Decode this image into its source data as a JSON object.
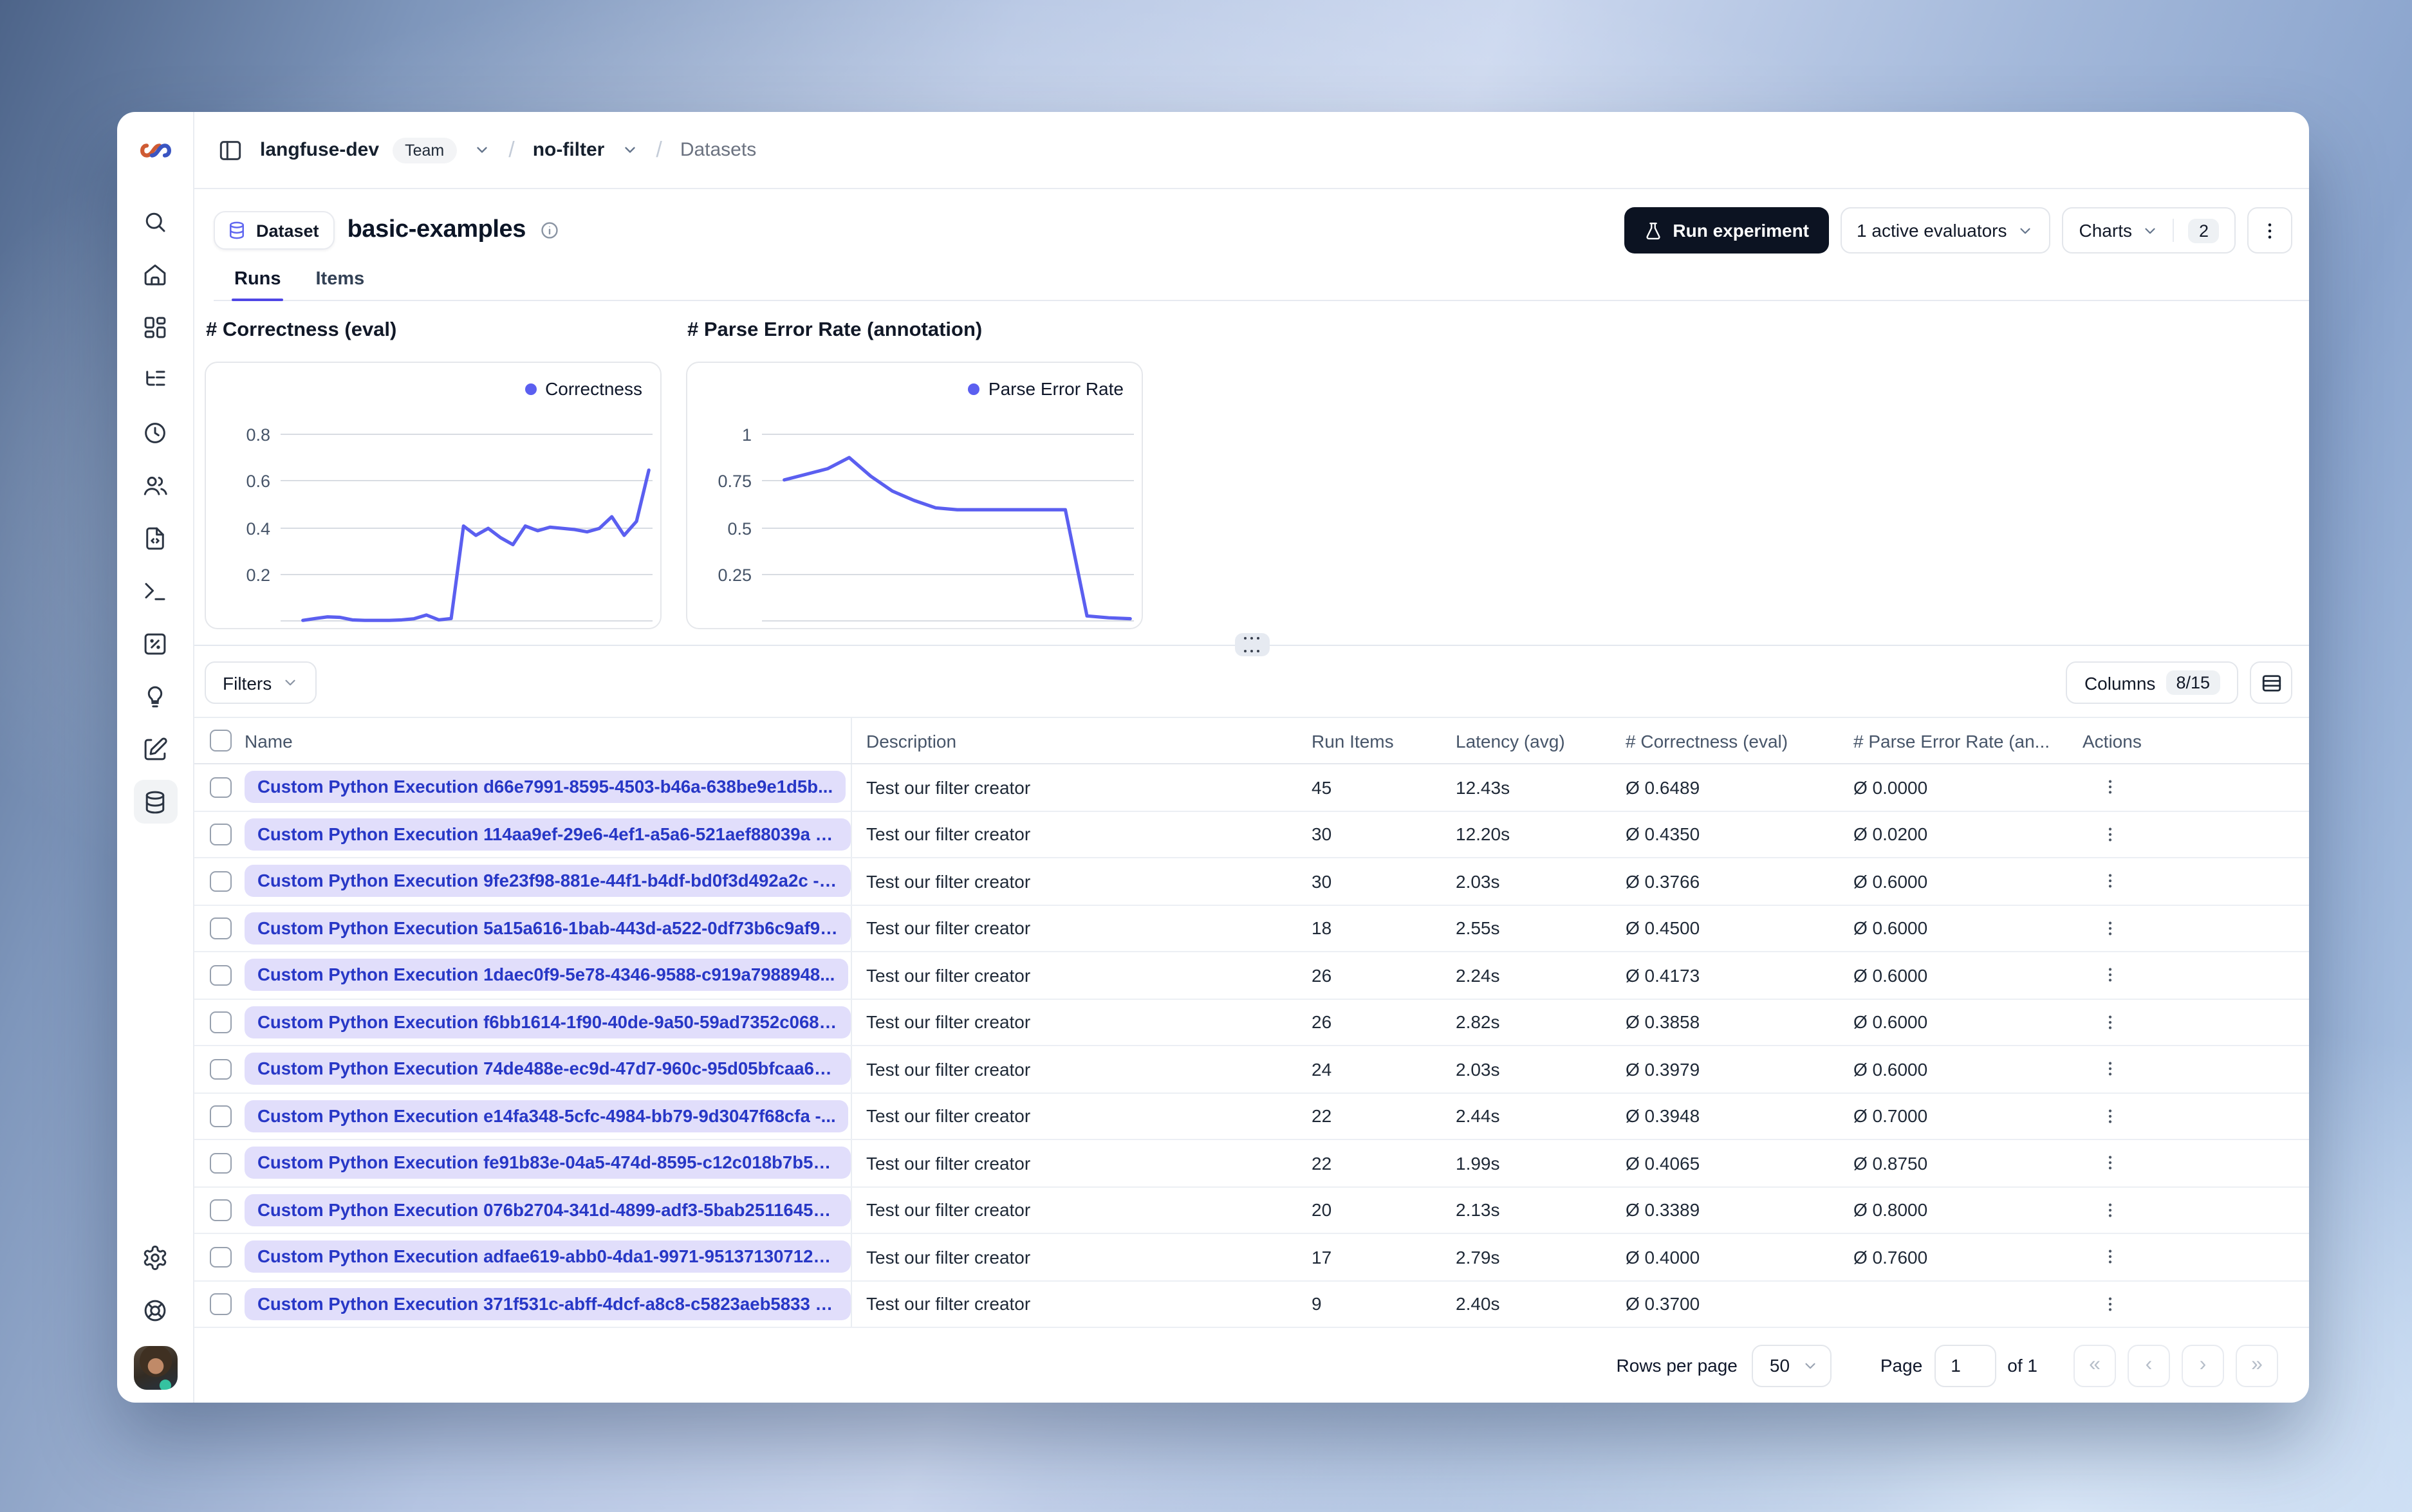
{
  "colors": {
    "accent_indigo": "#5b5ff0",
    "brand_dark": "#0c1322",
    "name_pill_bg": "#e1defb",
    "name_pill_text": "#2737c6",
    "tab_underline": "#4f46e5"
  },
  "sidebar": {
    "items": [
      {
        "icon": "search-icon"
      },
      {
        "icon": "home-icon"
      },
      {
        "icon": "dashboard-icon"
      },
      {
        "icon": "tracing-tree-icon"
      },
      {
        "icon": "sessions-clock-icon"
      },
      {
        "icon": "users-icon"
      },
      {
        "icon": "prompts-file-code-icon"
      },
      {
        "icon": "playground-terminal-icon"
      },
      {
        "icon": "evaluation-square-percent-icon"
      },
      {
        "icon": "insights-lightbulb-icon"
      },
      {
        "icon": "annotation-pen-icon"
      },
      {
        "icon": "datasets-database-icon",
        "active": true
      }
    ],
    "bottom_items": [
      {
        "icon": "settings-gear-icon"
      },
      {
        "icon": "support-lifebuoy-icon"
      }
    ]
  },
  "topbar": {
    "org": "langfuse-dev",
    "org_badge": "Team",
    "separator": "/",
    "env": "no-filter",
    "section": "Datasets"
  },
  "header": {
    "entity_badge": "Dataset",
    "title": "basic-examples",
    "tabs": [
      {
        "label": "Runs",
        "active": true
      },
      {
        "label": "Items",
        "active": false
      }
    ],
    "actions": {
      "run_experiment": "Run experiment",
      "evaluators": "1 active evaluators",
      "charts_label": "Charts",
      "charts_count": "2"
    }
  },
  "chart_data": [
    {
      "type": "line",
      "title": "# Correctness (eval)",
      "series": [
        {
          "name": "Correctness",
          "values": [
            0.005,
            0.013,
            0.02,
            0.018,
            0.007,
            0.005,
            0.005,
            0.005,
            0.007,
            0.012,
            0.028,
            0.007,
            0.013,
            0.41,
            0.37,
            0.4,
            0.36,
            0.33,
            0.41,
            0.39,
            0.405,
            0.4,
            0.395,
            0.385,
            0.4,
            0.45,
            0.37,
            0.43,
            0.65
          ]
        }
      ],
      "ylim": [
        0,
        1.0
      ],
      "yticks": [
        {
          "v": 0.2,
          "label": "0.2"
        },
        {
          "v": 0.4,
          "label": "0.4"
        },
        {
          "v": 0.6,
          "label": "0.6"
        },
        {
          "v": 0.8,
          "label": "0.8"
        }
      ],
      "x_tick_labels": [],
      "grid": true,
      "legend_position": "top-right",
      "color": "#5b5ff0"
    },
    {
      "type": "line",
      "title": "# Parse Error Rate (annotation)",
      "series": [
        {
          "name": "Parse Error Rate",
          "values": [
            0.76,
            0.79,
            0.82,
            0.88,
            0.78,
            0.7,
            0.65,
            0.61,
            0.6,
            0.6,
            0.6,
            0.6,
            0.6,
            0.6,
            0.03,
            0.02,
            0.015
          ]
        }
      ],
      "ylim": [
        0,
        1.25
      ],
      "yticks": [
        {
          "v": 0.25,
          "label": "0.25"
        },
        {
          "v": 0.5,
          "label": "0.5"
        },
        {
          "v": 0.75,
          "label": "0.75"
        },
        {
          "v": 1,
          "label": "1"
        }
      ],
      "x_tick_labels": [],
      "grid": true,
      "legend_position": "top-right",
      "color": "#5b5ff0"
    }
  ],
  "toolbar": {
    "filters_label": "Filters",
    "columns_label": "Columns",
    "columns_count": "8/15",
    "row_height_icon": "table-rows-icon"
  },
  "table": {
    "columns": [
      "Name",
      "Description",
      "Run Items",
      "Latency (avg)",
      "# Correctness (eval)",
      "# Parse Error Rate (an...",
      "Actions"
    ],
    "rows": [
      {
        "name": "Custom Python Execution d66e7991-8595-4503-b46a-638be9e1d5b...",
        "description": "Test our filter creator",
        "run_items": "45",
        "latency": "12.43s",
        "correctness": "Ø 0.6489",
        "parse_error": "Ø 0.0000"
      },
      {
        "name": "Custom Python Execution 114aa9ef-29e6-4ef1-a5a6-521aef88039a - ...",
        "description": "Test our filter creator",
        "run_items": "30",
        "latency": "12.20s",
        "correctness": "Ø 0.4350",
        "parse_error": "Ø 0.0200"
      },
      {
        "name": "Custom Python Execution 9fe23f98-881e-44f1-b4df-bd0f3d492a2c - ...",
        "description": "Test our filter creator",
        "run_items": "30",
        "latency": "2.03s",
        "correctness": "Ø 0.3766",
        "parse_error": "Ø 0.6000"
      },
      {
        "name": "Custom Python Execution 5a15a616-1bab-443d-a522-0df73b6c9af9 - ...",
        "description": "Test our filter creator",
        "run_items": "18",
        "latency": "2.55s",
        "correctness": "Ø 0.4500",
        "parse_error": "Ø 0.6000"
      },
      {
        "name": "Custom Python Execution 1daec0f9-5e78-4346-9588-c919a7988948...",
        "description": "Test our filter creator",
        "run_items": "26",
        "latency": "2.24s",
        "correctness": "Ø 0.4173",
        "parse_error": "Ø 0.6000"
      },
      {
        "name": "Custom Python Execution f6bb1614-1f90-40de-9a50-59ad7352c068 ...",
        "description": "Test our filter creator",
        "run_items": "26",
        "latency": "2.82s",
        "correctness": "Ø 0.3858",
        "parse_error": "Ø 0.6000"
      },
      {
        "name": "Custom Python Execution 74de488e-ec9d-47d7-960c-95d05bfcaa6a ...",
        "description": "Test our filter creator",
        "run_items": "24",
        "latency": "2.03s",
        "correctness": "Ø 0.3979",
        "parse_error": "Ø 0.6000"
      },
      {
        "name": "Custom Python Execution e14fa348-5cfc-4984-bb79-9d3047f68cfa -...",
        "description": "Test our filter creator",
        "run_items": "22",
        "latency": "2.44s",
        "correctness": "Ø 0.3948",
        "parse_error": "Ø 0.7000"
      },
      {
        "name": "Custom Python Execution fe91b83e-04a5-474d-8595-c12c018b7b5c ...",
        "description": "Test our filter creator",
        "run_items": "22",
        "latency": "1.99s",
        "correctness": "Ø 0.4065",
        "parse_error": "Ø 0.8750"
      },
      {
        "name": "Custom Python Execution 076b2704-341d-4899-adf3-5bab2511645e ...",
        "description": "Test our filter creator",
        "run_items": "20",
        "latency": "2.13s",
        "correctness": "Ø 0.3389",
        "parse_error": "Ø 0.8000"
      },
      {
        "name": "Custom Python Execution adfae619-abb0-4da1-9971-951371307128 - ...",
        "description": "Test our filter creator",
        "run_items": "17",
        "latency": "2.79s",
        "correctness": "Ø 0.4000",
        "parse_error": "Ø 0.7600"
      },
      {
        "name": "Custom Python Execution 371f531c-abff-4dcf-a8c8-c5823aeb5833 - ...",
        "description": "Test our filter creator",
        "run_items": "9",
        "latency": "2.40s",
        "correctness": "Ø 0.3700",
        "parse_error": ""
      }
    ]
  },
  "footer": {
    "rows_per_page_label": "Rows per page",
    "rows_per_page_value": "50",
    "page_label": "Page",
    "page_value": "1",
    "of_label": "of 1",
    "pagination": {
      "first": "«",
      "prev": "‹",
      "next": "›",
      "last": "»"
    }
  }
}
